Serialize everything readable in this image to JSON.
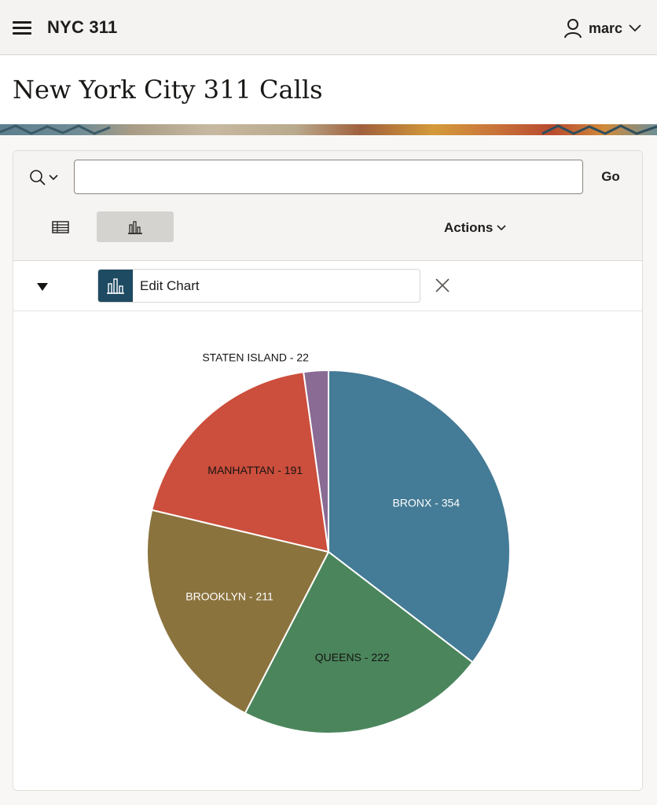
{
  "header": {
    "app_title": "NYC 311",
    "user_name": "marc"
  },
  "page": {
    "title": "New York City 311 Calls"
  },
  "toolbar": {
    "search_value": "",
    "go_label": "Go",
    "actions_label": "Actions",
    "active_view": "chart"
  },
  "settings": {
    "edit_chart_label": "Edit Chart"
  },
  "chart_data": {
    "type": "pie",
    "slices": [
      {
        "label": "BRONX",
        "value": 354,
        "color": "#447b96",
        "label_color": "#ffffff"
      },
      {
        "label": "QUEENS",
        "value": 222,
        "color": "#4b855c",
        "label_color": "#161513"
      },
      {
        "label": "BROOKLYN",
        "value": 211,
        "color": "#8b733e",
        "label_color": "#ffffff"
      },
      {
        "label": "MANHATTAN",
        "value": 191,
        "color": "#cc4e3c",
        "label_color": "#161513"
      },
      {
        "label": "STATEN ISLAND",
        "value": 22,
        "color": "#8a6b94",
        "label_color": "#161513"
      }
    ],
    "label_format": "{label} - {value}"
  }
}
